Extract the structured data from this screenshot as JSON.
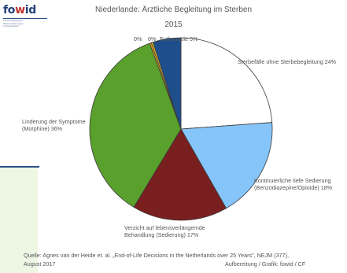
{
  "logo": {
    "word_part1": "fo",
    "word_part2": "w",
    "word_part3": "id",
    "subtitle_lines": [
      "Forschungsgruppe",
      "Weltanschauungen",
      "in Deutschland"
    ]
  },
  "chart_data": {
    "type": "pie",
    "title": "Niederlande: Ärztliche Begleitung im Sterben",
    "subtitle": "2015",
    "slices": [
      {
        "key": "ohne",
        "label": "Sterbefälle ohne Sterbebegleitung 24%",
        "value": 24,
        "color": "#ffffff"
      },
      {
        "key": "kont",
        "label_lines": [
          "Kontinuierliche tiefe Sedierung",
          "(Benzodiazepine/Opioide) 18%"
        ],
        "value": 18,
        "color": "#86c5f9"
      },
      {
        "key": "verz",
        "label_lines": [
          "Verzicht auf lebensverlängernde",
          "Behandlung (Sedierung) 17%"
        ],
        "value": 17,
        "color": "#7a1f1f"
      },
      {
        "key": "lind",
        "label_lines": [
          "Linderung der Symptome",
          "(Morphine) 36%"
        ],
        "value": 36,
        "color": "#5aa02c"
      },
      {
        "key": "z1",
        "label": "0%",
        "value": 0.3,
        "color": "#f29b1f"
      },
      {
        "key": "z2",
        "label": "0%",
        "value": 0.3,
        "color": "#f2d21f"
      },
      {
        "key": "euth",
        "label": "Euthanasie 5%",
        "value": 5,
        "color": "#1f4e8c"
      }
    ]
  },
  "footer": {
    "source_line1": "Quelle: Agnes van der Heide et. al. „End-of-Life Decisions in the Netherlands over 25 Years\", NEJM (377),",
    "source_line2": "August 2017",
    "credit": "Aufbereitung / Grafik: fowid / CF"
  }
}
